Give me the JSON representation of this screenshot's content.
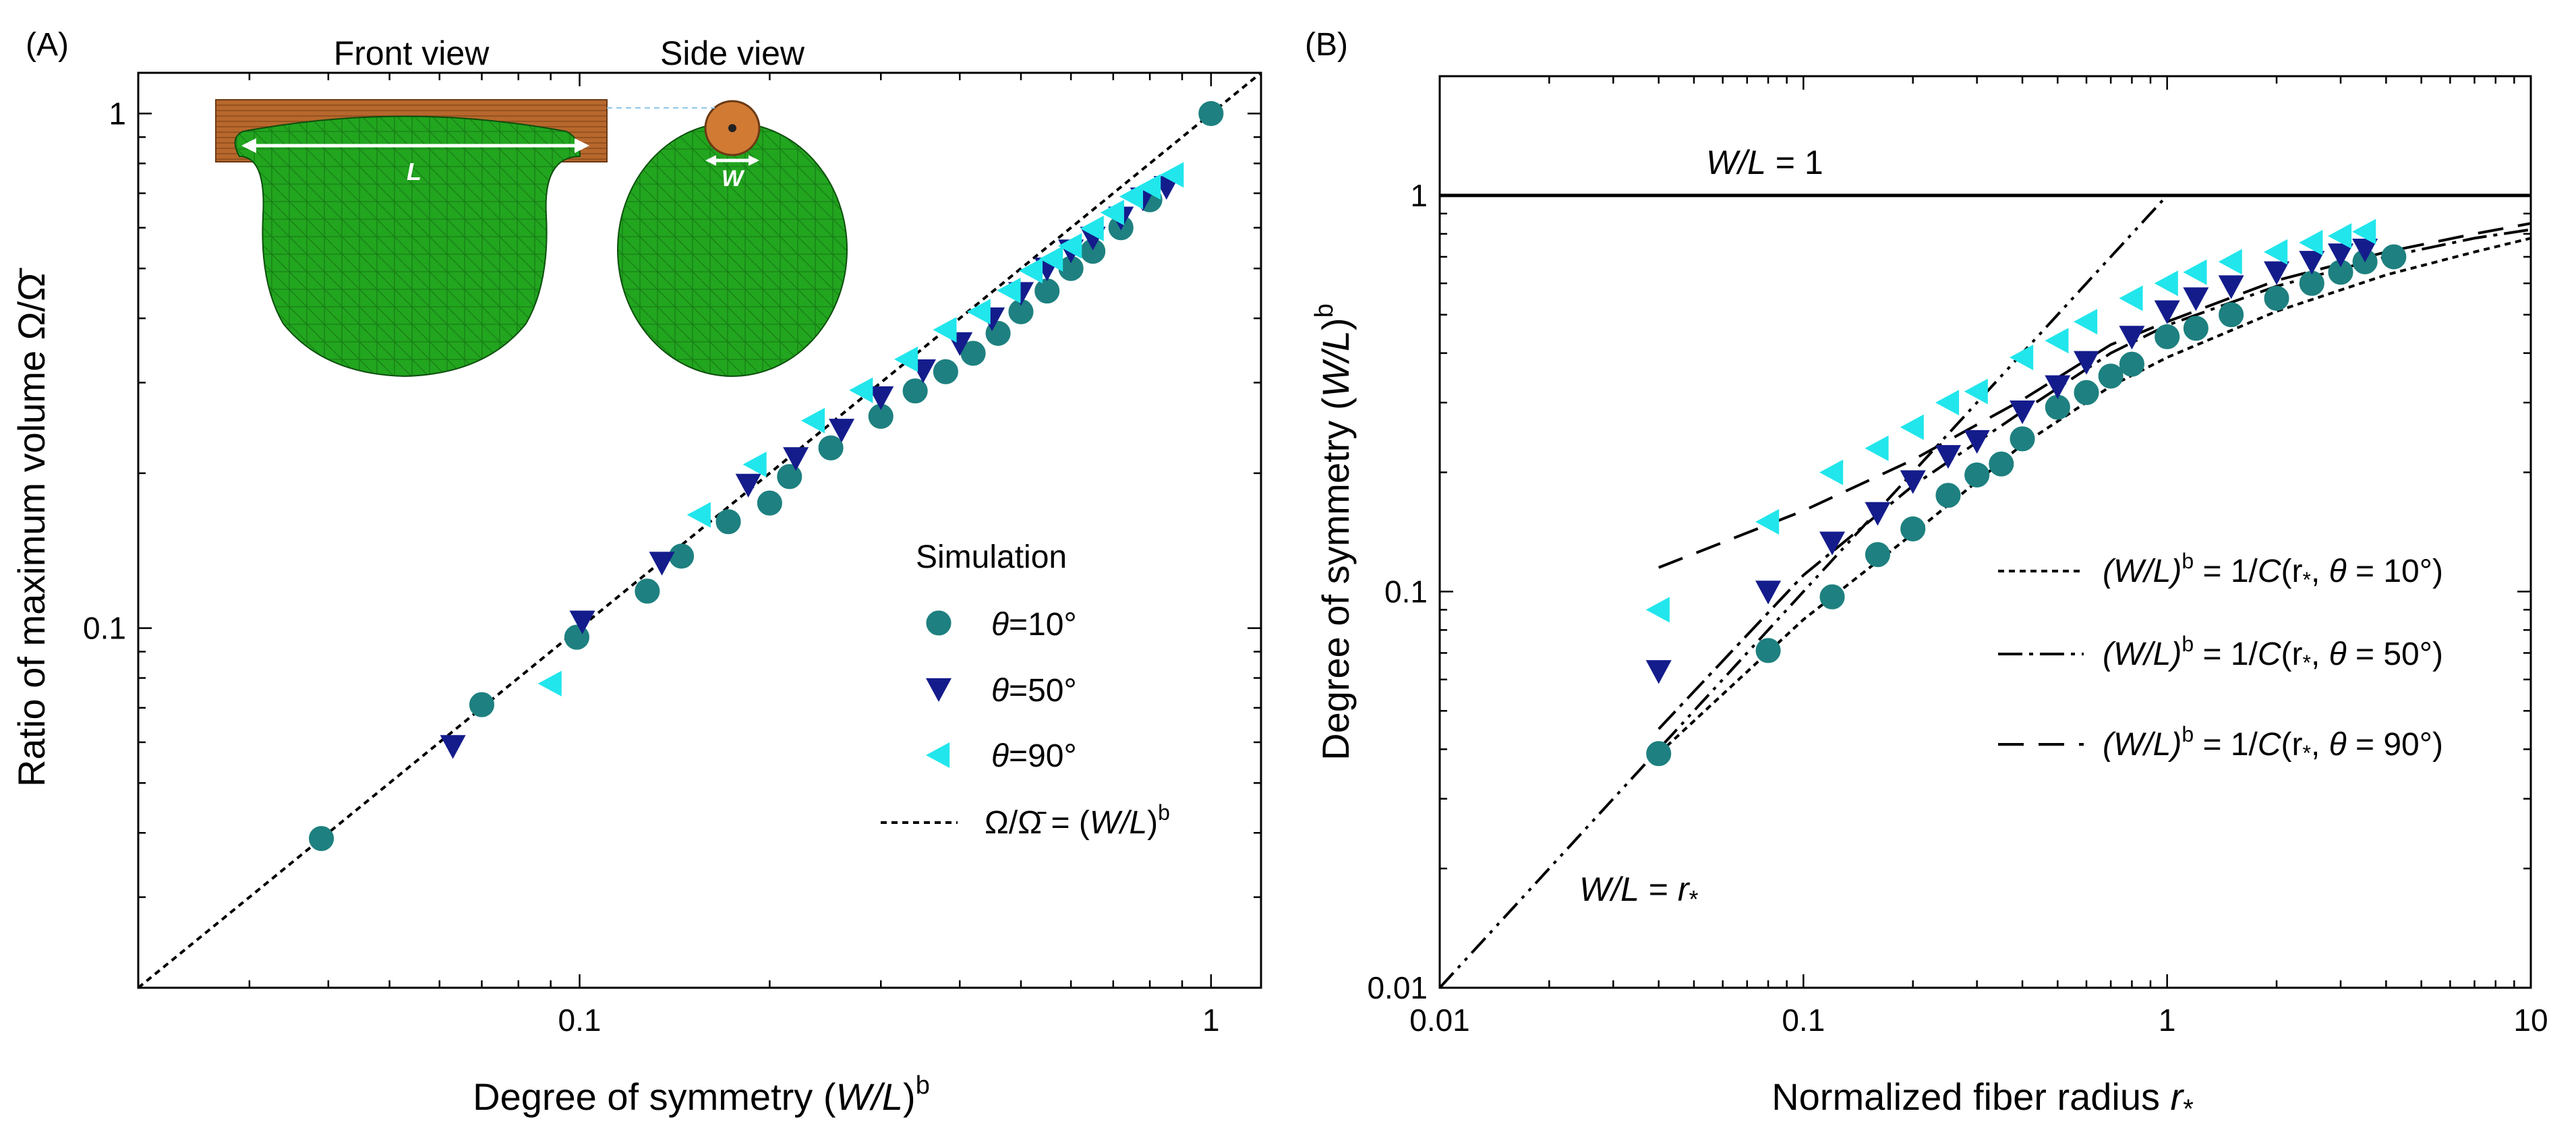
{
  "colors": {
    "theta10": "#1e8080",
    "theta50": "#141c8c",
    "theta90": "#21e6ec",
    "line": "#000000",
    "droplet": "#22a51f",
    "fiber": "#b8682d"
  },
  "panelA": {
    "panel_label": "(A)",
    "inset": {
      "front_label": "Front view",
      "side_label": "Side view",
      "L_label": "L",
      "W_label": "W"
    },
    "legend": {
      "title": "Simulation",
      "theta_symbol": "θ",
      "entries": [
        "=10°",
        "=50°",
        "=90°"
      ],
      "fit_label": {
        "lhs": "Ω/Ω̄",
        "eq": " = (",
        "var": "W/L",
        "close": ")",
        "sup": "b"
      }
    },
    "xlabel": {
      "prefix": "Degree of symmetry (",
      "var": "W/L",
      "close": ")",
      "sup": "b"
    },
    "ylabel": {
      "text": "Ratio of maximum volume Ω/Ω̄"
    },
    "chart_data": {
      "type": "scatter",
      "xscale": "log",
      "yscale": "log",
      "xlim": [
        0.02,
        1.2
      ],
      "ylim": [
        0.02,
        1.2
      ],
      "xticks": [
        {
          "v": 0.1,
          "label": "0.1"
        },
        {
          "v": 1,
          "label": "1"
        }
      ],
      "yticks": [
        {
          "v": 0.1,
          "label": "0.1"
        },
        {
          "v": 1,
          "label": "1"
        }
      ],
      "series": [
        {
          "name": "θ=10°",
          "marker": "circle",
          "color_key": "theta10",
          "points": [
            [
              0.039,
              0.039
            ],
            [
              0.07,
              0.071
            ],
            [
              0.099,
              0.096
            ],
            [
              0.128,
              0.118
            ],
            [
              0.145,
              0.138
            ],
            [
              0.172,
              0.161
            ],
            [
              0.2,
              0.175
            ],
            [
              0.215,
              0.197
            ],
            [
              0.25,
              0.224
            ],
            [
              0.3,
              0.258
            ],
            [
              0.34,
              0.289
            ],
            [
              0.38,
              0.315
            ],
            [
              0.42,
              0.342
            ],
            [
              0.46,
              0.374
            ],
            [
              0.5,
              0.412
            ],
            [
              0.55,
              0.452
            ],
            [
              0.6,
              0.5
            ],
            [
              0.65,
              0.54
            ],
            [
              0.72,
              0.6
            ],
            [
              0.8,
              0.68
            ],
            [
              1.0,
              1.0
            ]
          ]
        },
        {
          "name": "θ=50°",
          "marker": "triangle-down",
          "color_key": "theta50",
          "points": [
            [
              0.063,
              0.059
            ],
            [
              0.101,
              0.103
            ],
            [
              0.135,
              0.134
            ],
            [
              0.185,
              0.19
            ],
            [
              0.22,
              0.214
            ],
            [
              0.26,
              0.243
            ],
            [
              0.3,
              0.281
            ],
            [
              0.35,
              0.317
            ],
            [
              0.4,
              0.358
            ],
            [
              0.45,
              0.4
            ],
            [
              0.5,
              0.448
            ],
            [
              0.55,
              0.5
            ],
            [
              0.6,
              0.542
            ],
            [
              0.65,
              0.574
            ],
            [
              0.72,
              0.628
            ],
            [
              0.78,
              0.684
            ],
            [
              0.85,
              0.72
            ]
          ]
        },
        {
          "name": "θ=90°",
          "marker": "triangle-left",
          "color_key": "theta90",
          "points": [
            [
              0.09,
              0.078
            ],
            [
              0.155,
              0.166
            ],
            [
              0.19,
              0.208
            ],
            [
              0.235,
              0.253
            ],
            [
              0.28,
              0.29
            ],
            [
              0.33,
              0.333
            ],
            [
              0.38,
              0.38
            ],
            [
              0.43,
              0.412
            ],
            [
              0.48,
              0.453
            ],
            [
              0.52,
              0.495
            ],
            [
              0.56,
              0.522
            ],
            [
              0.6,
              0.553
            ],
            [
              0.65,
              0.598
            ],
            [
              0.7,
              0.642
            ],
            [
              0.75,
              0.69
            ],
            [
              0.8,
              0.72
            ],
            [
              0.87,
              0.76
            ]
          ]
        }
      ],
      "fit": {
        "name": "Ω/Ω̄ = (W/L)^b",
        "style": "dotted",
        "x": [
          0.02,
          1.2
        ],
        "y": [
          0.02,
          1.2
        ]
      }
    }
  },
  "panelB": {
    "panel_label": "(B)",
    "annot_wl1": {
      "var": "W/L",
      "rest": " = 1"
    },
    "annot_wlr": {
      "var": "W/L",
      "eq": " = ",
      "r": "r",
      "sub": "*"
    },
    "legend": {
      "entries": [
        {
          "lhs": "(W/L)",
          "sup": "b",
          "mid": " = 1/",
          "C": "C",
          "args": "(r",
          "sub": "*",
          "tail": ", ",
          "theta": "θ",
          "val": " = 10°)",
          "style": "dotted"
        },
        {
          "lhs": "(W/L)",
          "sup": "b",
          "mid": " = 1/",
          "C": "C",
          "args": "(r",
          "sub": "*",
          "tail": ", ",
          "theta": "θ",
          "val": " = 50°)",
          "style": "dashdot"
        },
        {
          "lhs": "(W/L)",
          "sup": "b",
          "mid": " = 1/",
          "C": "C",
          "args": "(r",
          "sub": "*",
          "tail": ", ",
          "theta": "θ",
          "val": " = 90°)",
          "style": "dashed"
        }
      ]
    },
    "xlabel": {
      "prefix": "Normalized fiber radius ",
      "var": "r",
      "sub": "*"
    },
    "ylabel": {
      "prefix": "Degree of symmetry (",
      "var": "W/L",
      "close": ")",
      "sup": "b"
    },
    "chart_data": {
      "type": "scatter",
      "xscale": "log",
      "yscale": "log",
      "xlim": [
        0.01,
        10
      ],
      "ylim": [
        0.01,
        2
      ],
      "xticks": [
        {
          "v": 0.01,
          "label": "0.01"
        },
        {
          "v": 0.1,
          "label": "0.1"
        },
        {
          "v": 1,
          "label": "1"
        },
        {
          "v": 10,
          "label": "10"
        }
      ],
      "yticks": [
        {
          "v": 0.01,
          "label": "0.01"
        },
        {
          "v": 0.1,
          "label": "0.1"
        },
        {
          "v": 1,
          "label": "1"
        }
      ],
      "series": [
        {
          "name": "θ=10°",
          "marker": "circle",
          "color_key": "theta10",
          "points": [
            [
              0.04,
              0.039
            ],
            [
              0.08,
              0.071
            ],
            [
              0.12,
              0.097
            ],
            [
              0.16,
              0.124
            ],
            [
              0.2,
              0.144
            ],
            [
              0.25,
              0.175
            ],
            [
              0.3,
              0.197
            ],
            [
              0.35,
              0.21
            ],
            [
              0.4,
              0.243
            ],
            [
              0.5,
              0.292
            ],
            [
              0.6,
              0.318
            ],
            [
              0.7,
              0.35
            ],
            [
              0.8,
              0.375
            ],
            [
              1.0,
              0.44
            ],
            [
              1.2,
              0.462
            ],
            [
              1.5,
              0.5
            ],
            [
              2.0,
              0.55
            ],
            [
              2.5,
              0.6
            ],
            [
              3.0,
              0.64
            ],
            [
              3.5,
              0.68
            ],
            [
              4.2,
              0.7
            ]
          ]
        },
        {
          "name": "θ=50°",
          "marker": "triangle-down",
          "color_key": "theta50",
          "points": [
            [
              0.04,
              0.063
            ],
            [
              0.08,
              0.1
            ],
            [
              0.12,
              0.133
            ],
            [
              0.16,
              0.158
            ],
            [
              0.2,
              0.19
            ],
            [
              0.25,
              0.22
            ],
            [
              0.3,
              0.24
            ],
            [
              0.4,
              0.285
            ],
            [
              0.5,
              0.33
            ],
            [
              0.6,
              0.38
            ],
            [
              0.8,
              0.44
            ],
            [
              1.0,
              0.51
            ],
            [
              1.2,
              0.55
            ],
            [
              1.5,
              0.59
            ],
            [
              2.0,
              0.64
            ],
            [
              2.5,
              0.68
            ],
            [
              3.0,
              0.71
            ],
            [
              3.5,
              0.73
            ]
          ]
        },
        {
          "name": "θ=90°",
          "marker": "triangle-left",
          "color_key": "theta90",
          "points": [
            [
              0.04,
              0.09
            ],
            [
              0.08,
              0.15
            ],
            [
              0.12,
              0.2
            ],
            [
              0.16,
              0.23
            ],
            [
              0.2,
              0.26
            ],
            [
              0.25,
              0.3
            ],
            [
              0.3,
              0.32
            ],
            [
              0.4,
              0.39
            ],
            [
              0.5,
              0.43
            ],
            [
              0.6,
              0.48
            ],
            [
              0.8,
              0.55
            ],
            [
              1.0,
              0.6
            ],
            [
              1.2,
              0.64
            ],
            [
              1.5,
              0.68
            ],
            [
              2.0,
              0.72
            ],
            [
              2.5,
              0.76
            ],
            [
              3.0,
              0.79
            ],
            [
              3.5,
              0.81
            ]
          ]
        }
      ],
      "lines": [
        {
          "name": "W/L = 1",
          "style": "solid",
          "x": [
            0.01,
            10
          ],
          "y": [
            1,
            1
          ]
        },
        {
          "name": "W/L = r*",
          "style": "dashdotdot",
          "x": [
            0.01,
            1
          ],
          "y": [
            0.01,
            1
          ]
        },
        {
          "name": "θ=10° model",
          "style": "dotted",
          "x": [
            0.04,
            0.1,
            0.2,
            0.4,
            0.7,
            1,
            2,
            4,
            7,
            10
          ],
          "y": [
            0.039,
            0.085,
            0.14,
            0.235,
            0.33,
            0.39,
            0.51,
            0.63,
            0.72,
            0.78
          ]
        },
        {
          "name": "θ=50° model",
          "style": "dashdot",
          "x": [
            0.04,
            0.1,
            0.2,
            0.4,
            0.7,
            1,
            2,
            4,
            7,
            10
          ],
          "y": [
            0.045,
            0.11,
            0.185,
            0.285,
            0.4,
            0.47,
            0.59,
            0.7,
            0.78,
            0.82
          ]
        },
        {
          "name": "θ=90° model",
          "style": "dashed",
          "x": [
            0.04,
            0.1,
            0.2,
            0.4,
            0.7,
            1,
            2,
            4,
            7,
            10
          ],
          "y": [
            0.115,
            0.16,
            0.215,
            0.305,
            0.42,
            0.48,
            0.61,
            0.72,
            0.8,
            0.85
          ]
        }
      ]
    }
  }
}
